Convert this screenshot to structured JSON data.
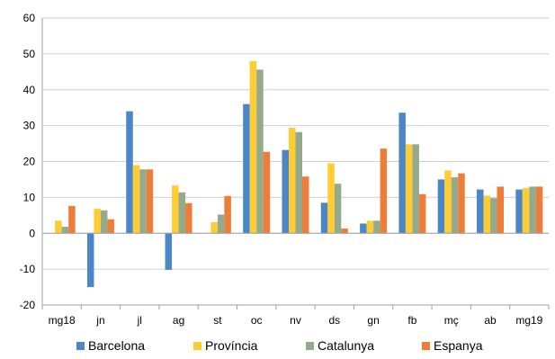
{
  "chart_data": {
    "type": "bar",
    "title": "",
    "xlabel": "",
    "ylabel": "",
    "ylim": [
      -20,
      60
    ],
    "yticks": [
      -20,
      -10,
      0,
      10,
      20,
      30,
      40,
      50,
      60
    ],
    "grid": true,
    "legend_position": "bottom",
    "categories": [
      "mg18",
      "jn",
      "jl",
      "ag",
      "st",
      "oc",
      "nv",
      "ds",
      "gn",
      "fb",
      "mç",
      "ab",
      "mg19"
    ],
    "series": [
      {
        "name": "Barcelona",
        "color": "#4a86c8",
        "values": [
          0.0,
          -15.0,
          34.0,
          -10.2,
          0.0,
          36.0,
          23.2,
          8.5,
          2.7,
          33.6,
          15.0,
          12.2,
          12.2
        ]
      },
      {
        "name": "Província",
        "color": "#ffcc33",
        "values": [
          3.5,
          6.8,
          19.0,
          13.3,
          3.1,
          48.0,
          29.4,
          19.5,
          3.5,
          24.8,
          17.5,
          10.5,
          12.6
        ]
      },
      {
        "name": "Catalunya",
        "color": "#93ab8c",
        "values": [
          1.8,
          6.4,
          17.8,
          11.4,
          5.2,
          45.6,
          28.2,
          13.8,
          3.5,
          24.8,
          15.6,
          9.8,
          13.0
        ]
      },
      {
        "name": "Espanya",
        "color": "#ee7d3a",
        "values": [
          7.6,
          3.9,
          17.8,
          8.4,
          10.4,
          22.7,
          15.8,
          1.3,
          23.6,
          10.9,
          16.7,
          13.0,
          13.0
        ]
      }
    ]
  }
}
